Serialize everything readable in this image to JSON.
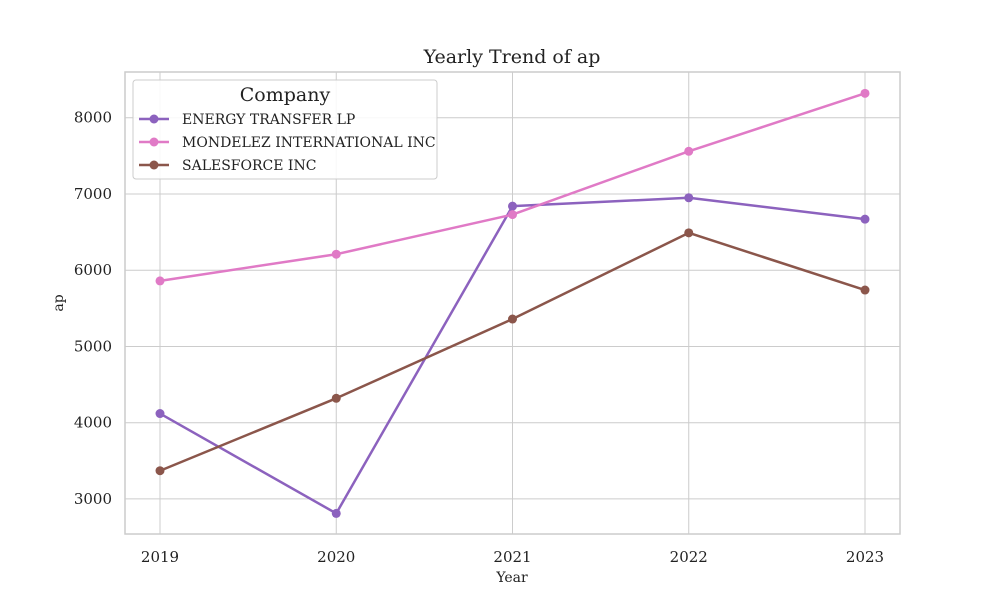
{
  "chart_data": {
    "type": "line",
    "title": "Yearly Trend of ap",
    "xlabel": "Year",
    "ylabel": "ap",
    "x": [
      "2019",
      "2020",
      "2021",
      "2022",
      "2023"
    ],
    "yticks": [
      "3000",
      "4000",
      "5000",
      "6000",
      "7000",
      "8000"
    ],
    "ylim": [
      2540,
      8600
    ],
    "grid": true,
    "legend": {
      "title": "Company",
      "placement": "top-left"
    },
    "series": [
      {
        "name": "ENERGY TRANSFER LP",
        "color": "#8c62be",
        "values": [
          4120,
          2810,
          6840,
          6950,
          6670
        ]
      },
      {
        "name": "MONDELEZ INTERNATIONAL INC",
        "color": "#e07ac6",
        "values": [
          5860,
          6210,
          6730,
          7560,
          8320
        ]
      },
      {
        "name": "SALESFORCE INC",
        "color": "#8b564b",
        "values": [
          3370,
          4320,
          5360,
          6490,
          5740
        ]
      }
    ]
  }
}
